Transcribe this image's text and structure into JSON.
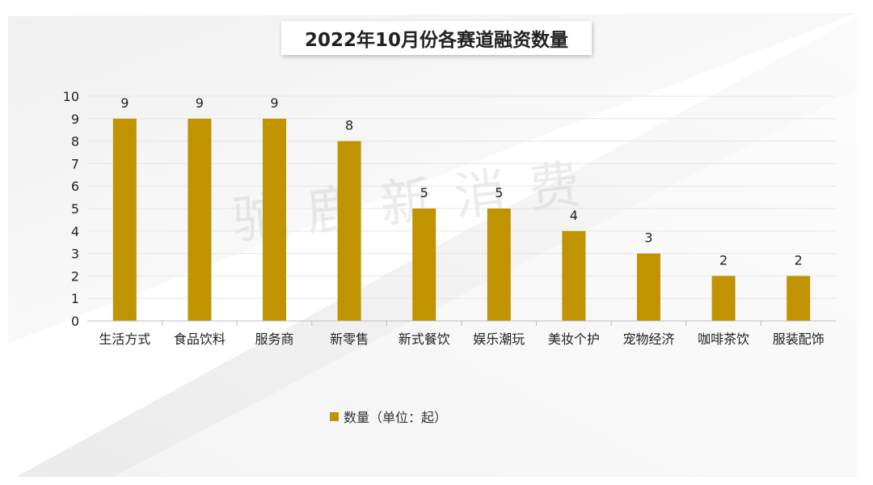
{
  "colors": {
    "bar": "#C09300",
    "grid": "#E6E6E6",
    "axis": "#BDBDBD",
    "text": "#222222"
  },
  "watermark": "驼鹿新消费",
  "chart_data": {
    "type": "bar",
    "title": "2022年10月份各赛道融资数量",
    "categories": [
      "生活方式",
      "食品饮料",
      "服务商",
      "新零售",
      "新式餐饮",
      "娱乐潮玩",
      "美妆个护",
      "宠物经济",
      "咖啡茶饮",
      "服装配饰"
    ],
    "series": [
      {
        "name": "数量（单位：起）",
        "values": [
          9,
          9,
          9,
          8,
          5,
          5,
          4,
          3,
          2,
          2
        ]
      }
    ],
    "ylim": [
      0,
      10
    ],
    "yticks": [
      "0",
      "1",
      "2",
      "3",
      "4",
      "5",
      "6",
      "7",
      "8",
      "9",
      "10"
    ],
    "grid": true,
    "legend": "bottom"
  }
}
